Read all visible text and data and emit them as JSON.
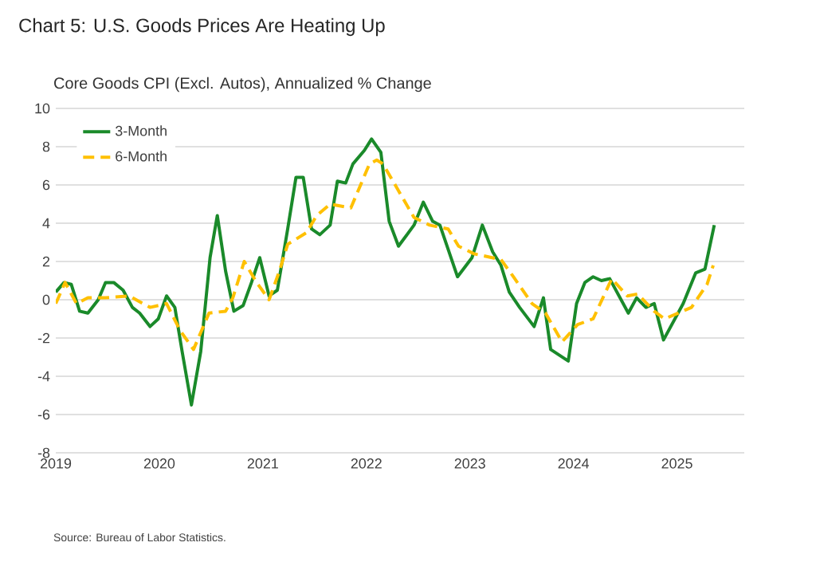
{
  "chart_data": {
    "type": "line",
    "title": "Chart 5: U.S. Goods Prices Are Heating Up",
    "subtitle": "Core Goods CPI (Excl. Autos), Annualized % Change",
    "annotations": [
      "Source: Bureau of Labor Statistics."
    ],
    "xlim": [
      2019,
      2025.65
    ],
    "xticks": [
      2019,
      2020,
      2021,
      2022,
      2023,
      2024,
      2025
    ],
    "ylim": [
      -8,
      10
    ],
    "yticks": [
      -8,
      -6,
      -4,
      -2,
      0,
      2,
      4,
      6,
      8,
      10
    ],
    "grid": "y",
    "legend": "top left",
    "series": [
      {
        "name": "3-Month",
        "color": "#1a8a2a",
        "line_style": "solid",
        "x": [
          2019.0,
          2019.08,
          2019.15,
          2019.23,
          2019.31,
          2019.41,
          2019.48,
          2019.56,
          2019.65,
          2019.74,
          2019.81,
          2019.91,
          2019.99,
          2020.07,
          2020.15,
          2020.22,
          2020.31,
          2020.4,
          2020.49,
          2020.56,
          2020.64,
          2020.72,
          2020.81,
          2020.89,
          2020.97,
          2021.06,
          2021.14,
          2021.24,
          2021.32,
          2021.39,
          2021.47,
          2021.55,
          2021.65,
          2021.72,
          2021.8,
          2021.87,
          2021.98,
          2022.05,
          2022.14,
          2022.22,
          2022.31,
          2022.46,
          2022.55,
          2022.64,
          2022.71,
          2022.88,
          2023.02,
          2023.12,
          2023.22,
          2023.3,
          2023.38,
          2023.48,
          2023.62,
          2023.71,
          2023.78,
          2023.95,
          2024.03,
          2024.11,
          2024.19,
          2024.27,
          2024.35,
          2024.53,
          2024.61,
          2024.7,
          2024.78,
          2024.87,
          2025.06,
          2025.18,
          2025.27,
          2025.36
        ],
        "values": [
          0.4,
          0.9,
          0.8,
          -0.6,
          -0.7,
          0,
          0.9,
          0.9,
          0.5,
          -0.4,
          -0.7,
          -1.4,
          -1,
          0.2,
          -0.4,
          -2.7,
          -5.5,
          -2.7,
          2.2,
          4.4,
          1.5,
          -0.6,
          -0.3,
          0.9,
          2.2,
          0.2,
          0.5,
          3.7,
          6.4,
          6.4,
          3.7,
          3.4,
          3.9,
          6.2,
          6.1,
          7.1,
          7.8,
          8.4,
          7.7,
          4.1,
          2.8,
          3.9,
          5.1,
          4.1,
          3.9,
          1.2,
          2.2,
          3.9,
          2.5,
          1.8,
          0.4,
          -0.4,
          -1.4,
          0.1,
          -2.6,
          -3.2,
          -0.2,
          0.9,
          1.2,
          1,
          1.1,
          -0.7,
          0.1,
          -0.4,
          -0.2,
          -2.1,
          -0.2,
          1.4,
          1.6,
          3.9
        ]
      },
      {
        "name": "6-Month",
        "color": "#ffc000",
        "line_style": "dashed",
        "x": [
          2019.0,
          2019.09,
          2019.2,
          2019.31,
          2019.48,
          2019.71,
          2019.91,
          2020.07,
          2020.2,
          2020.33,
          2020.48,
          2020.64,
          2020.71,
          2020.82,
          2020.94,
          2021.06,
          2021.16,
          2021.24,
          2021.42,
          2021.52,
          2021.65,
          2021.85,
          2022.03,
          2022.1,
          2022.16,
          2022.31,
          2022.46,
          2022.61,
          2022.79,
          2022.89,
          2023.04,
          2023.3,
          2023.42,
          2023.6,
          2023.73,
          2023.89,
          2024.04,
          2024.19,
          2024.37,
          2024.52,
          2024.62,
          2024.78,
          2024.88,
          2025.01,
          2025.14,
          2025.29,
          2025.35
        ],
        "values": [
          -0.2,
          0.9,
          -0.2,
          0.1,
          0.1,
          0.2,
          -0.4,
          -0.2,
          -1.6,
          -2.6,
          -0.7,
          -0.6,
          0.1,
          2,
          0.9,
          0,
          1.5,
          2.9,
          3.5,
          4.4,
          5,
          4.8,
          7.1,
          7.3,
          7.1,
          5.7,
          4.3,
          3.9,
          3.7,
          2.8,
          2.4,
          2.1,
          1.2,
          -0.2,
          -0.7,
          -2.2,
          -1.3,
          -1,
          1.1,
          0.2,
          0.3,
          -0.6,
          -1,
          -0.7,
          -0.4,
          0.8,
          1.8
        ]
      }
    ]
  }
}
